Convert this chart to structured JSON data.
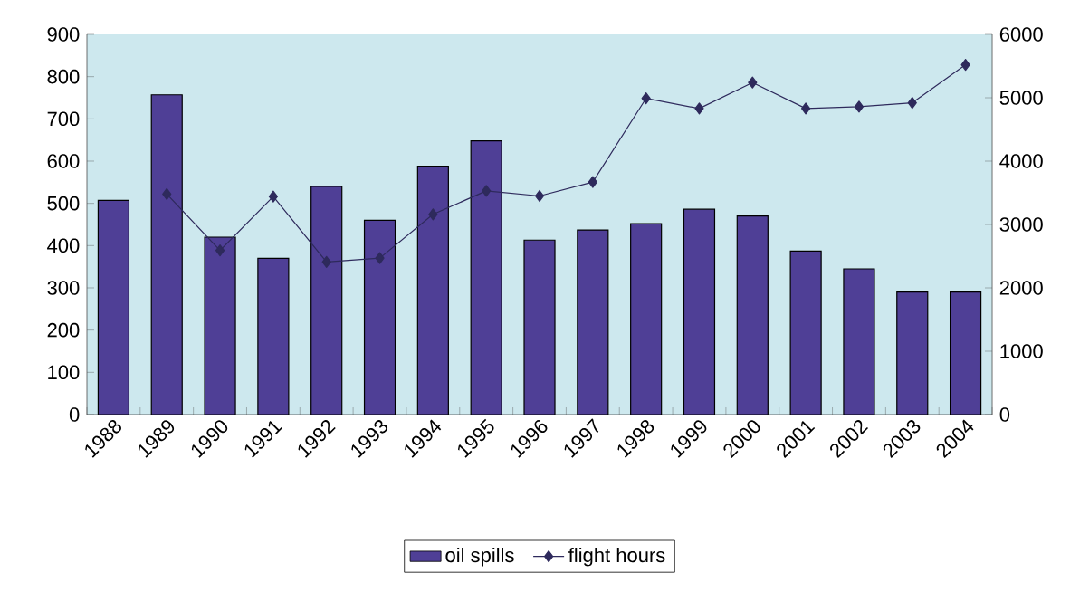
{
  "chart_data": {
    "type": "bar",
    "categories": [
      "1988",
      "1989",
      "1990",
      "1991",
      "1992",
      "1993",
      "1994",
      "1995",
      "1996",
      "1997",
      "1998",
      "1999",
      "2000",
      "2001",
      "2002",
      "2003",
      "2004"
    ],
    "series": [
      {
        "name": "oil spills",
        "color": "#4f3f96",
        "values": [
          507,
          757,
          420,
          370,
          540,
          460,
          588,
          648,
          413,
          437,
          452,
          486,
          470,
          387,
          345,
          290,
          290
        ]
      },
      {
        "name": "flight hours",
        "type": "line",
        "axis": "y2",
        "color": "#2e2a5c",
        "marker": "diamond",
        "values": [
          null,
          3480,
          2590,
          3440,
          2410,
          2470,
          3160,
          3530,
          3450,
          3670,
          4990,
          4830,
          5240,
          4830,
          4860,
          4920,
          5520
        ]
      }
    ],
    "ylim": [
      0,
      900
    ],
    "yticks": [
      0,
      100,
      200,
      300,
      400,
      500,
      600,
      700,
      800,
      900
    ],
    "y2lim": [
      0,
      6000
    ],
    "y2ticks": [
      0,
      1000,
      2000,
      3000,
      4000,
      5000,
      6000
    ],
    "legend": "bottom",
    "grid": false
  }
}
